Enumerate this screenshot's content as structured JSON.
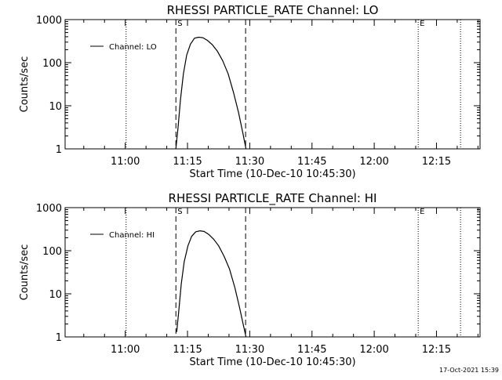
{
  "footer": {
    "timestamp": "17-Oct-2021 15:39"
  },
  "chart_data": [
    {
      "type": "line",
      "title": "RHESSI PARTICLE_RATE Channel: LO",
      "xlabel": "Start Time (10-Dec-10 10:45:30)",
      "ylabel": "Counts/sec",
      "x_unit": "minutes after 10:45:30",
      "xlim": [
        0,
        100
      ],
      "ylim": [
        1,
        1000
      ],
      "yscale": "log",
      "x_ticks": [
        {
          "value": 14.5,
          "label": "11:00"
        },
        {
          "value": 29.5,
          "label": "11:15"
        },
        {
          "value": 44.5,
          "label": "11:30"
        },
        {
          "value": 59.5,
          "label": "11:45"
        },
        {
          "value": 74.5,
          "label": "12:00"
        },
        {
          "value": 89.5,
          "label": "12:15"
        }
      ],
      "y_ticks": [
        {
          "value": 1,
          "label": "1"
        },
        {
          "value": 10,
          "label": "10"
        },
        {
          "value": 100,
          "label": "100"
        },
        {
          "value": 1000,
          "label": "1000"
        }
      ],
      "legend": {
        "entry": "Channel: LO",
        "position": "top-left"
      },
      "markers": {
        "dotted": [
          14.7,
          85.1,
          95.3
        ],
        "dashed": [
          26.7,
          43.5
        ],
        "S_label": {
          "value": 26.7,
          "label": "S"
        },
        "E_label": {
          "value": 85.1,
          "label": "E"
        }
      },
      "series": [
        {
          "name": "Channel: LO",
          "x": [
            26.7,
            27.2,
            27.8,
            28.5,
            29.3,
            30.2,
            31.2,
            32.2,
            33.2,
            34.3,
            35.5,
            36.7,
            38.0,
            39.3,
            40.6,
            41.8,
            42.9,
            43.6
          ],
          "y": [
            1,
            3,
            14,
            55,
            150,
            270,
            370,
            390,
            380,
            330,
            260,
            185,
            110,
            55,
            20,
            7,
            2.2,
            1
          ]
        }
      ]
    },
    {
      "type": "line",
      "title": "RHESSI PARTICLE_RATE Channel: HI",
      "xlabel": "Start Time (10-Dec-10 10:45:30)",
      "ylabel": "Counts/sec",
      "x_unit": "minutes after 10:45:30",
      "xlim": [
        0,
        100
      ],
      "ylim": [
        1,
        1000
      ],
      "yscale": "log",
      "x_ticks": [
        {
          "value": 14.5,
          "label": "11:00"
        },
        {
          "value": 29.5,
          "label": "11:15"
        },
        {
          "value": 44.5,
          "label": "11:30"
        },
        {
          "value": 59.5,
          "label": "11:45"
        },
        {
          "value": 74.5,
          "label": "12:00"
        },
        {
          "value": 89.5,
          "label": "12:15"
        }
      ],
      "y_ticks": [
        {
          "value": 1,
          "label": "1"
        },
        {
          "value": 10,
          "label": "10"
        },
        {
          "value": 100,
          "label": "100"
        },
        {
          "value": 1000,
          "label": "1000"
        }
      ],
      "legend": {
        "entry": "Channel: HI",
        "position": "top-left"
      },
      "markers": {
        "dotted": [
          14.7,
          85.1,
          95.3
        ],
        "dashed": [
          26.7,
          43.5
        ],
        "S_label": {
          "value": 26.7,
          "label": "S"
        },
        "E_label": {
          "value": 85.1,
          "label": "E"
        }
      },
      "series": [
        {
          "name": "Channel: HI",
          "x": [
            26.9,
            27.4,
            28.0,
            28.7,
            29.6,
            30.5,
            31.5,
            32.5,
            33.5,
            34.6,
            35.8,
            37.0,
            38.3,
            39.6,
            40.9,
            42.0,
            43.0,
            43.6
          ],
          "y": [
            1.3,
            4,
            17,
            55,
            130,
            215,
            275,
            290,
            280,
            240,
            185,
            130,
            75,
            38,
            14,
            5,
            1.8,
            1
          ]
        }
      ]
    }
  ]
}
